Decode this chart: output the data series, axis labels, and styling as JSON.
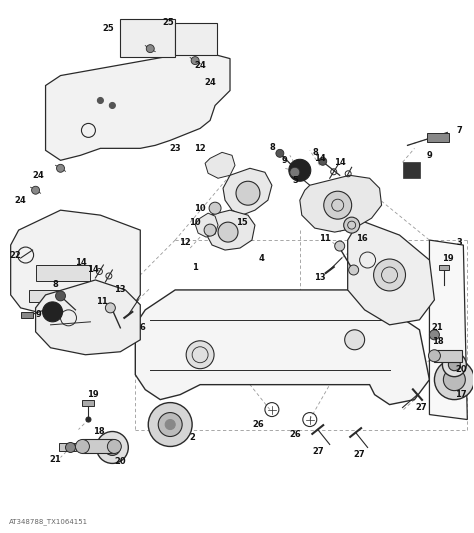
{
  "bg_color": "#ffffff",
  "line_color": "#2a2a2a",
  "dashed_color": "#999999",
  "label_color": "#111111",
  "watermark": "AT348788_TX1064151",
  "fig_width": 4.74,
  "fig_height": 5.33,
  "dpi": 100
}
